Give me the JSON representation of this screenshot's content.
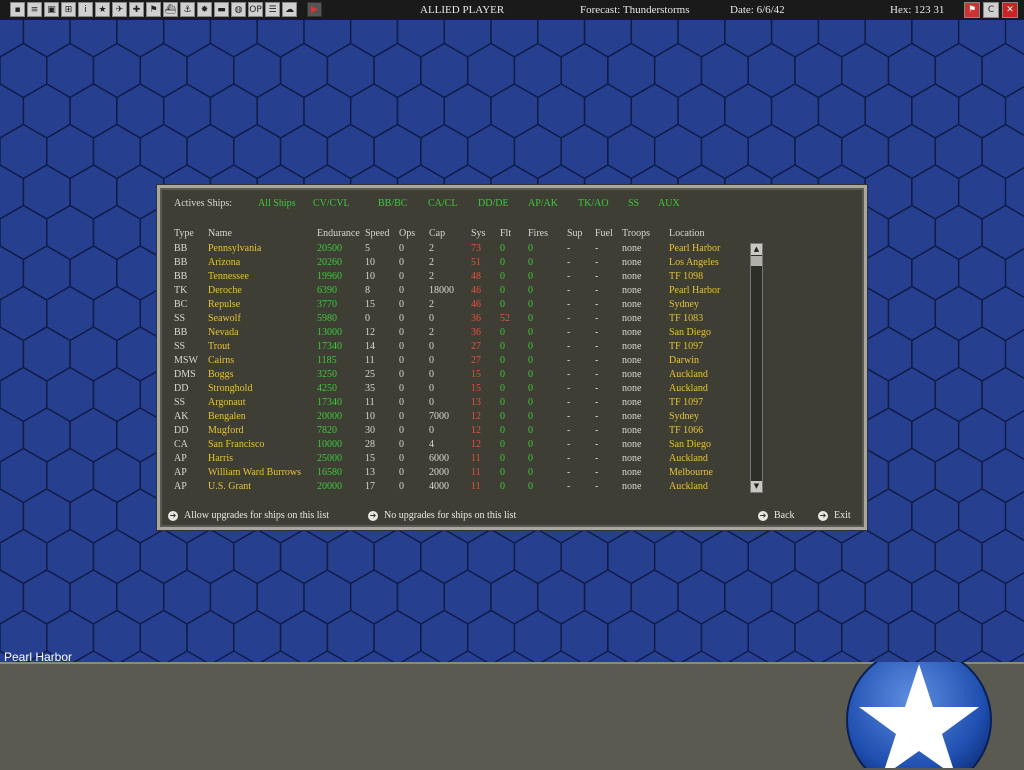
{
  "toolbar": {
    "icons": [
      "save-icon",
      "document-icon",
      "computer-icon",
      "network-icon",
      "info-icon",
      "star-icon",
      "aircraft-icon",
      "cross-icon",
      "flag-icon",
      "ship-icon",
      "crane-icon",
      "combat-icon",
      "tank-icon",
      "globe-icon",
      "op-icon",
      "list-icon",
      "cloud-icon"
    ],
    "op_label": "OP",
    "info_label": "i",
    "player": "ALLIED PLAYER",
    "forecast": "Forecast: Thunderstorms",
    "date": "Date: 6/6/42",
    "hex": "Hex: 123 31",
    "right_icons": [
      "flag-icon",
      "c-icon",
      "close-icon"
    ],
    "c_label": "C",
    "close_label": "✕"
  },
  "filters": {
    "label": "Actives Ships:",
    "items": [
      "All Ships",
      "CV/CVL",
      "BB/BC",
      "CA/CL",
      "DD/DE",
      "AP/AK",
      "TK/AO",
      "SS",
      "AUX"
    ]
  },
  "columns": [
    "Type",
    "Name",
    "Endurance",
    "Speed",
    "Ops",
    "Cap",
    "Sys",
    "Flt",
    "Fires",
    "Sup",
    "Fuel",
    "Troops",
    "Location"
  ],
  "ships": [
    {
      "type": "BB",
      "name": "Pennsylvania",
      "endurance": "20500",
      "speed": "5",
      "ops": "0",
      "cap": "2",
      "sys": "73",
      "flt": "0",
      "fires": "0",
      "sup": "-",
      "fuel": "-",
      "troops": "none",
      "location": "Pearl Harbor"
    },
    {
      "type": "BB",
      "name": "Arizona",
      "endurance": "20260",
      "speed": "10",
      "ops": "0",
      "cap": "2",
      "sys": "51",
      "flt": "0",
      "fires": "0",
      "sup": "-",
      "fuel": "-",
      "troops": "none",
      "location": "Los Angeles"
    },
    {
      "type": "BB",
      "name": "Tennessee",
      "endurance": "19960",
      "speed": "10",
      "ops": "0",
      "cap": "2",
      "sys": "48",
      "flt": "0",
      "fires": "0",
      "sup": "-",
      "fuel": "-",
      "troops": "none",
      "location": "TF 1098"
    },
    {
      "type": "TK",
      "name": "Deroche",
      "endurance": "6390",
      "speed": "8",
      "ops": "0",
      "cap": "18000",
      "sys": "46",
      "flt": "0",
      "fires": "0",
      "sup": "-",
      "fuel": "-",
      "troops": "none",
      "location": "Pearl Harbor"
    },
    {
      "type": "BC",
      "name": "Repulse",
      "endurance": "3770",
      "speed": "15",
      "ops": "0",
      "cap": "2",
      "sys": "46",
      "flt": "0",
      "fires": "0",
      "sup": "-",
      "fuel": "-",
      "troops": "none",
      "location": "Sydney"
    },
    {
      "type": "SS",
      "name": "Seawolf",
      "endurance": "5980",
      "speed": "0",
      "ops": "0",
      "cap": "0",
      "sys": "36",
      "flt": "52",
      "fires": "0",
      "sup": "-",
      "fuel": "-",
      "troops": "none",
      "location": "TF 1083"
    },
    {
      "type": "BB",
      "name": "Nevada",
      "endurance": "13000",
      "speed": "12",
      "ops": "0",
      "cap": "2",
      "sys": "36",
      "flt": "0",
      "fires": "0",
      "sup": "-",
      "fuel": "-",
      "troops": "none",
      "location": "San Diego"
    },
    {
      "type": "SS",
      "name": "Trout",
      "endurance": "17340",
      "speed": "14",
      "ops": "0",
      "cap": "0",
      "sys": "27",
      "flt": "0",
      "fires": "0",
      "sup": "-",
      "fuel": "-",
      "troops": "none",
      "location": "TF 1097"
    },
    {
      "type": "MSW",
      "name": "Cairns",
      "endurance": "1185",
      "speed": "11",
      "ops": "0",
      "cap": "0",
      "sys": "27",
      "flt": "0",
      "fires": "0",
      "sup": "-",
      "fuel": "-",
      "troops": "none",
      "location": "Darwin"
    },
    {
      "type": "DMS",
      "name": "Boggs",
      "endurance": "3250",
      "speed": "25",
      "ops": "0",
      "cap": "0",
      "sys": "15",
      "flt": "0",
      "fires": "0",
      "sup": "-",
      "fuel": "-",
      "troops": "none",
      "location": "Auckland"
    },
    {
      "type": "DD",
      "name": "Stronghold",
      "endurance": "4250",
      "speed": "35",
      "ops": "0",
      "cap": "0",
      "sys": "15",
      "flt": "0",
      "fires": "0",
      "sup": "-",
      "fuel": "-",
      "troops": "none",
      "location": "Auckland"
    },
    {
      "type": "SS",
      "name": "Argonaut",
      "endurance": "17340",
      "speed": "11",
      "ops": "0",
      "cap": "0",
      "sys": "13",
      "flt": "0",
      "fires": "0",
      "sup": "-",
      "fuel": "-",
      "troops": "none",
      "location": "TF 1097"
    },
    {
      "type": "AK",
      "name": "Bengalen",
      "endurance": "20000",
      "speed": "10",
      "ops": "0",
      "cap": "7000",
      "sys": "12",
      "flt": "0",
      "fires": "0",
      "sup": "-",
      "fuel": "-",
      "troops": "none",
      "location": "Sydney"
    },
    {
      "type": "DD",
      "name": "Mugford",
      "endurance": "7820",
      "speed": "30",
      "ops": "0",
      "cap": "0",
      "sys": "12",
      "flt": "0",
      "fires": "0",
      "sup": "-",
      "fuel": "-",
      "troops": "none",
      "location": "TF 1066"
    },
    {
      "type": "CA",
      "name": "San Francisco",
      "endurance": "10000",
      "speed": "28",
      "ops": "0",
      "cap": "4",
      "sys": "12",
      "flt": "0",
      "fires": "0",
      "sup": "-",
      "fuel": "-",
      "troops": "none",
      "location": "San Diego"
    },
    {
      "type": "AP",
      "name": "Harris",
      "endurance": "25000",
      "speed": "15",
      "ops": "0",
      "cap": "6000",
      "sys": "11",
      "flt": "0",
      "fires": "0",
      "sup": "-",
      "fuel": "-",
      "troops": "none",
      "location": "Auckland"
    },
    {
      "type": "AP",
      "name": "William Ward Burrows",
      "endurance": "16580",
      "speed": "13",
      "ops": "0",
      "cap": "2000",
      "sys": "11",
      "flt": "0",
      "fires": "0",
      "sup": "-",
      "fuel": "-",
      "troops": "none",
      "location": "Melbourne"
    },
    {
      "type": "AP",
      "name": "U.S. Grant",
      "endurance": "20000",
      "speed": "17",
      "ops": "0",
      "cap": "4000",
      "sys": "11",
      "flt": "0",
      "fires": "0",
      "sup": "-",
      "fuel": "-",
      "troops": "none",
      "location": "Auckland"
    }
  ],
  "footer": {
    "allow": "Allow upgrades for ships on this list",
    "no_upgrades": "No upgrades for ships on this list",
    "back": "Back",
    "exit": "Exit"
  },
  "status": {
    "place": "Pearl Harbor"
  },
  "colors": {
    "map_blue": "#26408f",
    "panel_bg": "#3e3e34",
    "green": "#3ec83e",
    "yellow": "#e6c33a",
    "red": "#e85040"
  }
}
